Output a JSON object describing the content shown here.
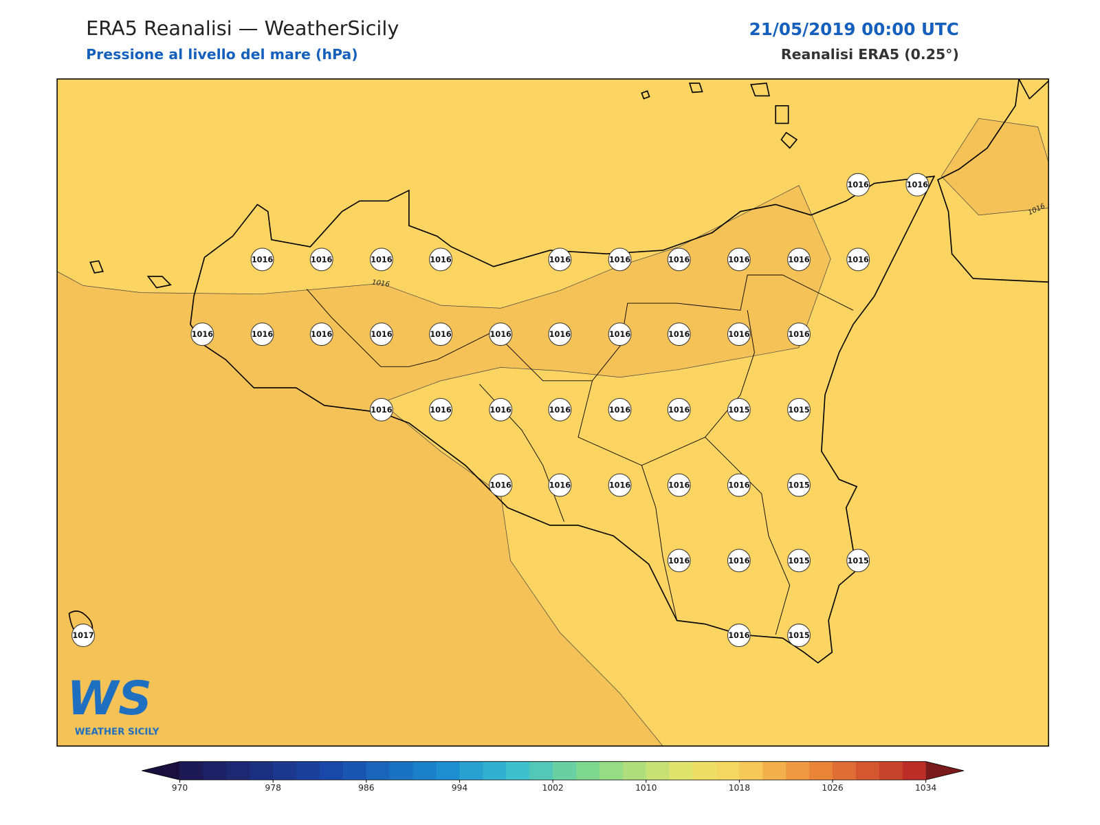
{
  "header": {
    "title": "ERA5 Reanalisi — WeatherSicily",
    "subtitle": "Pressione al livello del mare (hPa)",
    "datetime": "21/05/2019 00:00 UTC",
    "source": "Reanalisi ERA5 (0.25°)"
  },
  "map": {
    "contour_labels": [
      1016,
      1016
    ],
    "stations": [
      1016,
      1016,
      1016,
      1016,
      1016,
      1016,
      1016,
      1016,
      1016,
      1016,
      1016,
      1016,
      1016,
      1016,
      1016,
      1016,
      1016,
      1016,
      1016,
      1016,
      1016,
      1016,
      1016,
      1016,
      1016,
      1016,
      1016,
      1016,
      1016,
      1015,
      1015,
      1016,
      1016,
      1016,
      1016,
      1016,
      1015,
      1016,
      1016,
      1015,
      1015,
      1017,
      1016,
      1015
    ]
  },
  "colorbar": {
    "ticks": [
      970,
      978,
      986,
      994,
      1002,
      1010,
      1018,
      1026,
      1034
    ]
  },
  "logo": {
    "mark": "WS",
    "name": "WEATHER SICILY"
  }
}
